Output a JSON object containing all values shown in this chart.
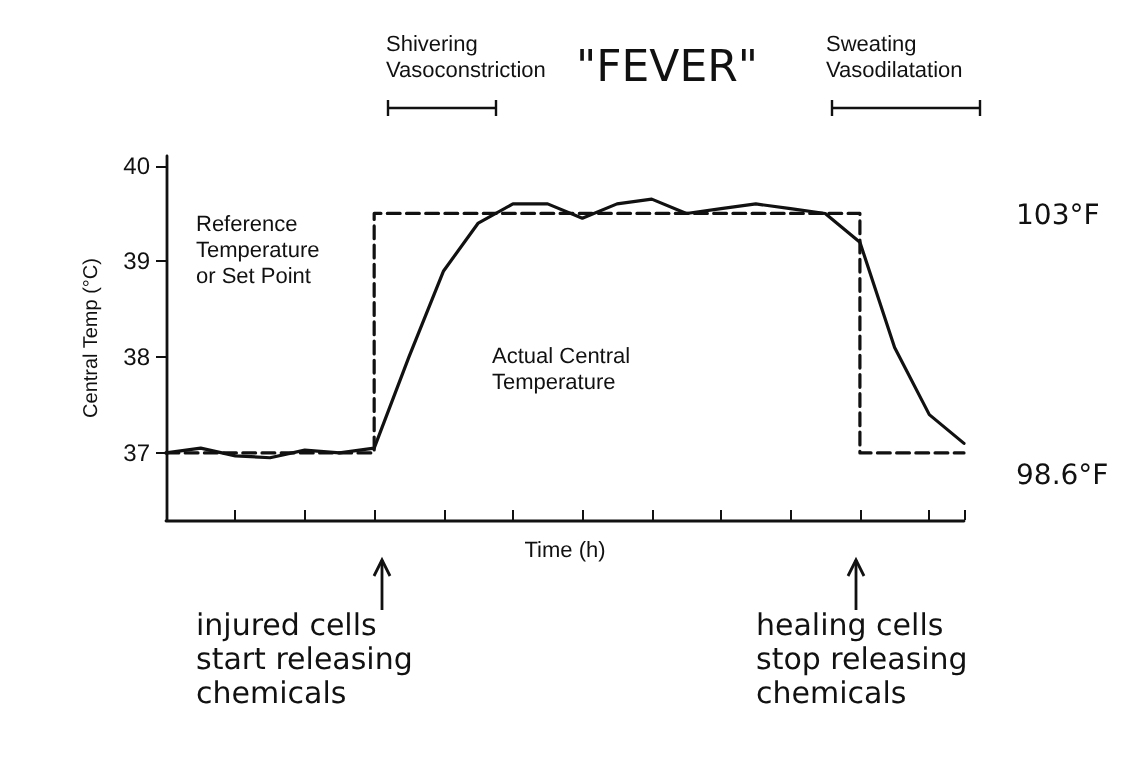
{
  "chart_data": {
    "type": "line",
    "xlabel": "Time (h)",
    "ylabel": "Central Temp (°C)",
    "categories": [
      null,
      null,
      null,
      null,
      null,
      null,
      null,
      null,
      null,
      null,
      null,
      null,
      null,
      null,
      null,
      null,
      null,
      null,
      null,
      null,
      null,
      null,
      null,
      null
    ],
    "series": [
      {
        "type": "step",
        "color": "#111111",
        "line_style": "dashed",
        "values": [
          37,
          37,
          37,
          37,
          37,
          37,
          39.5,
          39.5,
          39.5,
          39.5,
          39.5,
          39.5,
          39.5,
          39.5,
          39.5,
          39.5,
          39.5,
          39.5,
          39.5,
          39.5,
          37,
          37,
          37,
          37
        ]
      },
      {
        "type": "line",
        "color": "#111111",
        "line_style": "solid",
        "values": [
          37,
          37.05,
          36.97,
          36.95,
          37.03,
          37,
          37.05,
          38,
          38.9,
          39.4,
          39.6,
          39.6,
          39.45,
          39.6,
          39.65,
          39.5,
          39.55,
          39.6,
          39.55,
          39.5,
          39.2,
          38.1,
          37.4,
          37.1
        ]
      }
    ],
    "ylim": [
      36.3,
      40.1
    ],
    "yticks": [
      37,
      38,
      39,
      40
    ],
    "grid": false,
    "marker": "none",
    "tick_labels": "y",
    "annotations": [
      "Shivering\nVasoconstriction",
      "\"FEVER\"",
      "Sweating\nVasodilatation",
      "103°F",
      "98.6°F",
      "Reference\nTemperature\nor Set Point",
      "Actual Central\nTemperature",
      "injured cells\nstart releasing\nchemicals",
      "healing cells\nstop releasing\nchemicals"
    ]
  }
}
